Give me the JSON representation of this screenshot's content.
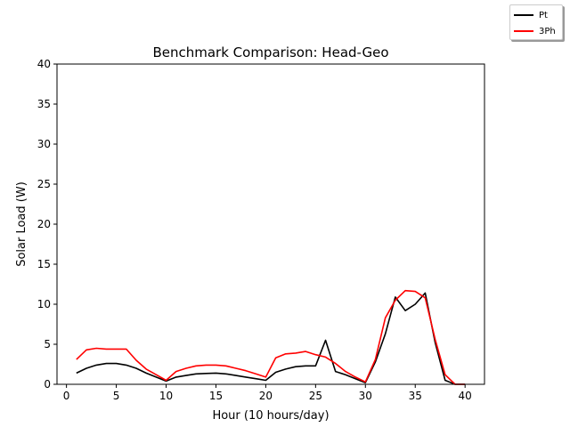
{
  "chart_data": {
    "type": "line",
    "title": "Benchmark Comparison: Head-Geo",
    "xlabel": "Hour (10 hours/day)",
    "ylabel": "Solar Load (W)",
    "xlim": [
      -0.95,
      41.95
    ],
    "ylim": [
      0,
      40
    ],
    "xticks": [
      0,
      5,
      10,
      15,
      20,
      25,
      30,
      35,
      40
    ],
    "yticks": [
      0,
      5,
      10,
      15,
      20,
      25,
      30,
      35,
      40
    ],
    "grid": false,
    "legend_position": "top-right (outside plot)",
    "x": [
      1,
      2,
      3,
      4,
      5,
      6,
      7,
      8,
      9,
      10,
      11,
      12,
      13,
      14,
      15,
      16,
      17,
      18,
      19,
      20,
      21,
      22,
      23,
      24,
      25,
      26,
      27,
      28,
      29,
      30,
      31,
      32,
      33,
      34,
      35,
      36,
      37,
      38,
      39,
      40
    ],
    "series": [
      {
        "name": "Pt",
        "color": "#000000",
        "values": [
          1.4,
          2.0,
          2.4,
          2.6,
          2.6,
          2.4,
          2.0,
          1.4,
          0.9,
          0.4,
          0.9,
          1.1,
          1.3,
          1.35,
          1.4,
          1.3,
          1.1,
          0.9,
          0.7,
          0.5,
          1.5,
          1.9,
          2.2,
          2.3,
          2.3,
          5.5,
          1.6,
          1.2,
          0.7,
          0.2,
          2.8,
          6.3,
          10.9,
          9.2,
          10.0,
          11.4,
          5.2,
          0.5,
          0.0,
          0.0
        ]
      },
      {
        "name": "3Ph",
        "color": "#ff0000",
        "values": [
          3.1,
          4.3,
          4.5,
          4.4,
          4.4,
          4.4,
          3.0,
          1.9,
          1.2,
          0.5,
          1.6,
          2.0,
          2.3,
          2.4,
          2.4,
          2.3,
          2.0,
          1.7,
          1.3,
          0.9,
          3.3,
          3.8,
          3.9,
          4.1,
          3.7,
          3.4,
          2.6,
          1.6,
          0.9,
          0.3,
          3.1,
          8.3,
          10.5,
          11.7,
          11.6,
          10.8,
          5.6,
          1.2,
          0.0,
          0.0
        ]
      }
    ]
  }
}
